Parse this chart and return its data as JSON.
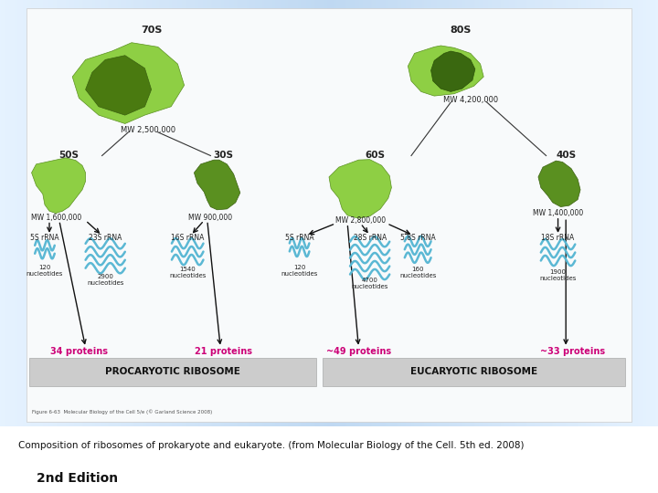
{
  "caption_line1": "Composition of ribosomes of prokaryote and eukaryote. (from Molecular Biology of the Cell. 5th ed. 2008)",
  "caption_line2": "2nd Edition",
  "figure_caption": "Figure 6-63  Molecular Biology of the Cell 5/e (© Garland Science 2008)",
  "title_70S": "70S",
  "title_80S": "80S",
  "mw_total_pro": "MW 2,500,000",
  "mw_total_euk": "MW 4,200,000",
  "sub_50S": "50S",
  "sub_30S": "30S",
  "sub_60S": "60S",
  "sub_40S": "40S",
  "mw_50S": "MW 1,600,000",
  "mw_30S": "MW 900,000",
  "mw_60S": "MW 2,800,000",
  "mw_40S": "MW 1,400,000",
  "pro_label1": "5S rRNA",
  "pro_label2": "23S rRNA",
  "pro_label3": "16S rRNA",
  "pro_nuc1": "120\nnucleotides",
  "pro_nuc2": "2900\nnucleotides",
  "pro_nuc3": "1540\nnucleotides",
  "euk_label1": "5S rRNA",
  "euk_label2": "28S rRNA",
  "euk_label3": "5.8S rRNA",
  "euk_label4": "18S rRNA",
  "euk_nuc1": "120\nnucleotides",
  "euk_nuc2": "4700\nnucleotides",
  "euk_nuc3": "160\nnucleotides",
  "euk_nuc4": "1900\nnucleotides",
  "pro_proteins1": "34 proteins",
  "pro_proteins2": "21 proteins",
  "euk_proteins1": "~49 proteins",
  "euk_proteins2": "~33 proteins",
  "pro_label_bar": "PROCARYOTIC RIBOSOME",
  "euk_label_bar": "EUCARYOTIC RIBOSOME",
  "protein_color": "#cc0077",
  "rna_color": "#5bb8d4",
  "text_color": "#222222",
  "bar_color": "#cccccc",
  "arrow_color": "#111111",
  "panel_bg": "#f5f8fa",
  "outer_bg_left": "#a8c8e8",
  "outer_bg_right": "#b8d4ec",
  "caption_color": "#111111"
}
